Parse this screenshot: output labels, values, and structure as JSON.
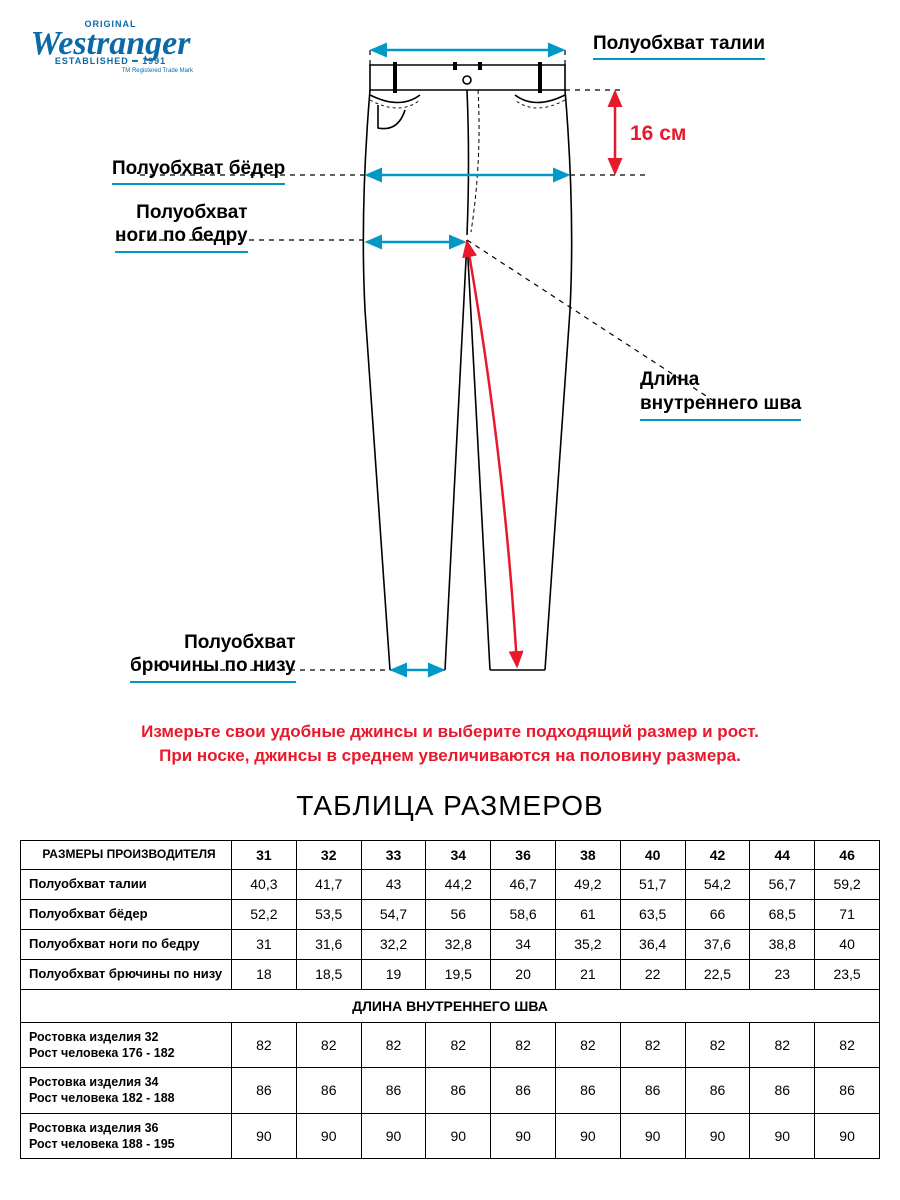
{
  "logo": {
    "top": "ORIGINAL",
    "main": "Westranger",
    "sub": "ESTABLISHED ━ 1991",
    "tm": "TM Registered Trade Mark"
  },
  "colors": {
    "blue": "#0099c7",
    "red": "#e8192c",
    "brand": "#0b6aa6",
    "black": "#000000"
  },
  "labels": {
    "waist": "Полуобхват талии",
    "hips": "Полуобхват бёдер",
    "thigh_line1": "Полуобхват",
    "thigh_line2": "ноги по бедру",
    "rise": "16 см",
    "inseam_line1": "Длина",
    "inseam_line2": "внутреннего шва",
    "hem_line1": "Полуобхват",
    "hem_line2": "брючины по низу"
  },
  "instruction_line1": "Измерьте свои удобные джинсы и выберите подходящий размер и рост.",
  "instruction_line2": "При носке, джинсы в среднем увеличиваются на половину размера.",
  "table_title": "ТАБЛИЦА РАЗМЕРОВ",
  "table": {
    "header_label": "РАЗМЕРЫ ПРОИЗВОДИТЕЛЯ",
    "sizes": [
      "31",
      "32",
      "33",
      "34",
      "36",
      "38",
      "40",
      "42",
      "44",
      "46"
    ],
    "rows": [
      {
        "label": "Полуобхват талии",
        "values": [
          "40,3",
          "41,7",
          "43",
          "44,2",
          "46,7",
          "49,2",
          "51,7",
          "54,2",
          "56,7",
          "59,2"
        ]
      },
      {
        "label": "Полуобхват бёдер",
        "values": [
          "52,2",
          "53,5",
          "54,7",
          "56",
          "58,6",
          "61",
          "63,5",
          "66",
          "68,5",
          "71"
        ]
      },
      {
        "label": "Полуобхват ноги по бедру",
        "values": [
          "31",
          "31,6",
          "32,2",
          "32,8",
          "34",
          "35,2",
          "36,4",
          "37,6",
          "38,8",
          "40"
        ]
      },
      {
        "label": "Полуобхват брючины по низу",
        "values": [
          "18",
          "18,5",
          "19",
          "19,5",
          "20",
          "21",
          "22",
          "22,5",
          "23",
          "23,5"
        ]
      }
    ],
    "section_header": "ДЛИНА ВНУТРЕННЕГО ШВА",
    "inseam_rows": [
      {
        "label_l1": "Ростовка изделия 32",
        "label_l2": "Рост человека 176 - 182",
        "values": [
          "82",
          "82",
          "82",
          "82",
          "82",
          "82",
          "82",
          "82",
          "82",
          "82"
        ]
      },
      {
        "label_l1": "Ростовка изделия 34",
        "label_l2": "Рост человека 182 - 188",
        "values": [
          "86",
          "86",
          "86",
          "86",
          "86",
          "86",
          "86",
          "86",
          "86",
          "86"
        ]
      },
      {
        "label_l1": "Ростовка изделия 36",
        "label_l2": "Рост человека 188 - 195",
        "values": [
          "90",
          "90",
          "90",
          "90",
          "90",
          "90",
          "90",
          "90",
          "90",
          "90"
        ]
      }
    ]
  },
  "diagram_style": {
    "jean_stroke": "#000000",
    "jean_stroke_width": 1.6,
    "dash_stroke": "#000000",
    "dash_width": 1.2,
    "dash_pattern": "5,5",
    "blue_arrow_width": 2.5,
    "red_arrow_width": 2.5
  }
}
